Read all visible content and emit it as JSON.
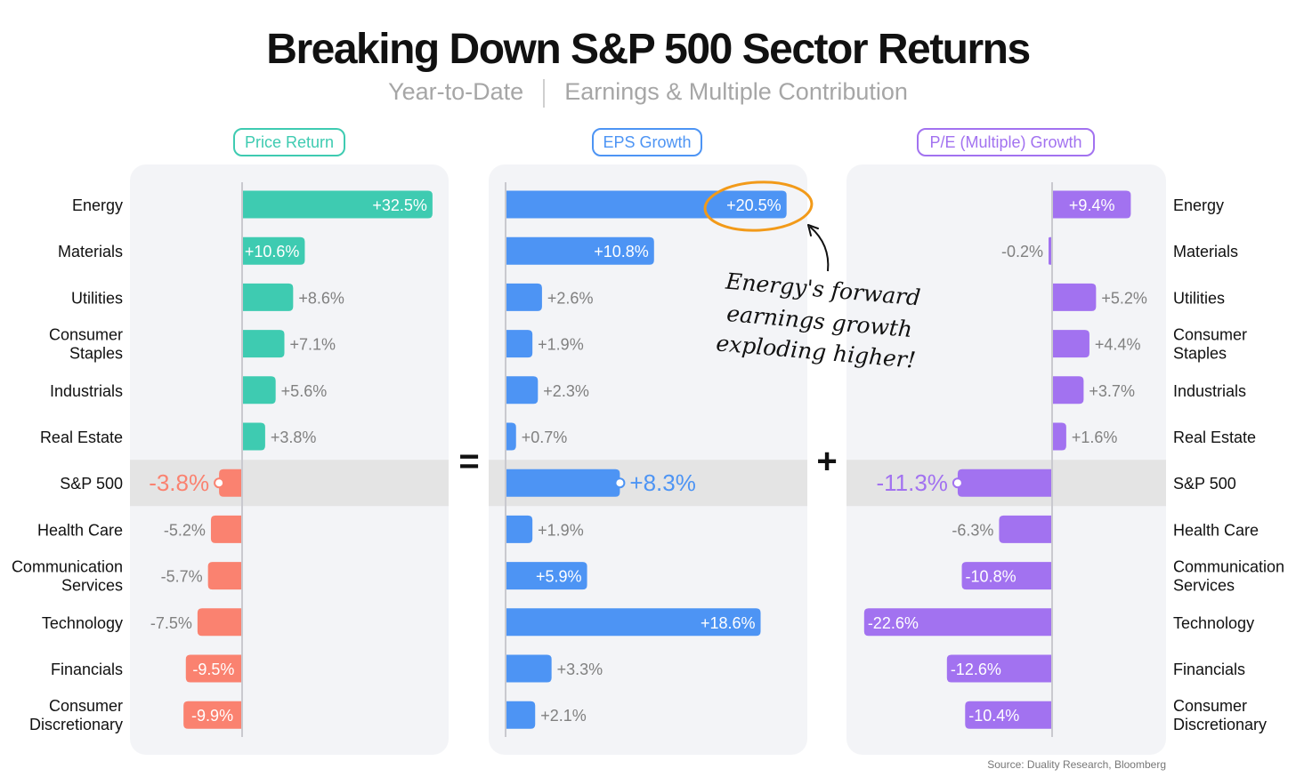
{
  "title": "Breaking Down S&P 500 Sector Returns",
  "subtitle": {
    "left": "Year-to-Date",
    "right": "Earnings & Multiple Contribution"
  },
  "source": "Source: Duality Research, Bloomberg",
  "operators": {
    "equals": "=",
    "plus": "+"
  },
  "annotation": {
    "lines": [
      "Energy's forward",
      "earnings growth",
      "exploding higher!"
    ]
  },
  "chart_data": {
    "type": "bar",
    "orientation": "horizontal",
    "categories": [
      "Energy",
      "Materials",
      "Utilities",
      "Consumer Staples",
      "Industrials",
      "Real Estate",
      "S&P 500",
      "Health Care",
      "Communication Services",
      "Technology",
      "Financials",
      "Consumer Discretionary"
    ],
    "highlight_category": "S&P 500",
    "series": [
      {
        "name": "Price Return",
        "color": "#3ecbb1",
        "neg_color": "#fa8270",
        "values": [
          32.5,
          10.6,
          8.6,
          7.1,
          5.6,
          3.8,
          -3.8,
          -5.2,
          -5.7,
          -7.5,
          -9.5,
          -9.9
        ],
        "labels": [
          "+32.5%",
          "+10.6%",
          "+8.6%",
          "+7.1%",
          "+5.6%",
          "+3.8%",
          "-3.8%",
          "-5.2%",
          "-5.7%",
          "-7.5%",
          "-9.5%",
          "-9.9%"
        ]
      },
      {
        "name": "EPS Growth",
        "color": "#4d94f4",
        "values": [
          20.5,
          10.8,
          2.6,
          1.9,
          2.3,
          0.7,
          8.3,
          1.9,
          5.9,
          18.6,
          3.3,
          2.1
        ],
        "labels": [
          "+20.5%",
          "+10.8%",
          "+2.6%",
          "+1.9%",
          "+2.3%",
          "+0.7%",
          "+8.3%",
          "+1.9%",
          "+5.9%",
          "+18.6%",
          "+3.3%",
          "+2.1%"
        ]
      },
      {
        "name": "P/E (Multiple) Growth",
        "color": "#a272f0",
        "values": [
          9.4,
          -0.2,
          5.2,
          4.4,
          3.7,
          1.6,
          -11.3,
          -6.3,
          -10.8,
          -22.6,
          -12.6,
          -10.4
        ],
        "labels": [
          "+9.4%",
          "-0.2%",
          "+5.2%",
          "+4.4%",
          "+3.7%",
          "+1.6%",
          "-11.3%",
          "-6.3%",
          "-10.8%",
          "-22.6%",
          "-12.6%",
          "-10.4%"
        ]
      }
    ]
  }
}
